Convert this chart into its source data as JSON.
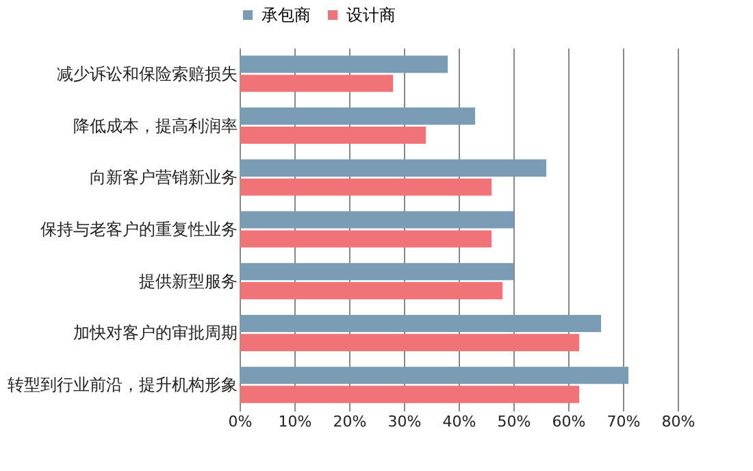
{
  "chart_data": {
    "type": "bar",
    "orientation": "horizontal",
    "categories": [
      "减少诉讼和保险索赔损失",
      "降低成本，提高利润率",
      "向新客户营销新业务",
      "保持与老客户的重复性业务",
      "提供新型服务",
      "加快对客户的审批周期",
      "转型到行业前沿，提升机构形象"
    ],
    "series": [
      {
        "name": "承包商",
        "color": "#7a9cb4",
        "values": [
          38,
          43,
          56,
          50,
          50,
          66,
          71
        ]
      },
      {
        "name": "设计商",
        "color": "#f07378",
        "values": [
          28,
          34,
          46,
          46,
          48,
          62,
          62
        ]
      }
    ],
    "xlim": [
      0,
      80
    ],
    "xticks": [
      {
        "value": 0,
        "label": "0%"
      },
      {
        "value": 10,
        "label": "10%"
      },
      {
        "value": 20,
        "label": "20%"
      },
      {
        "value": 30,
        "label": "30%"
      },
      {
        "value": 40,
        "label": "40%"
      },
      {
        "value": 50,
        "label": "50%"
      },
      {
        "value": 60,
        "label": "60%"
      },
      {
        "value": 70,
        "label": "70%"
      },
      {
        "value": 80,
        "label": "80%"
      }
    ],
    "grid": "x",
    "legend": "top"
  }
}
